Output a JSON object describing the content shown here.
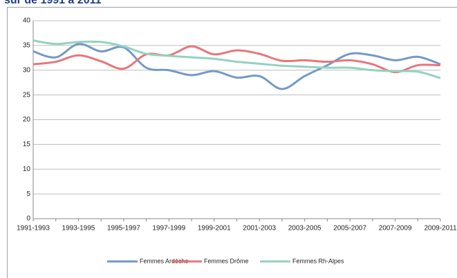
{
  "chart_data": {
    "type": "line",
    "title": "sur de 1991 à 2011",
    "categories": [
      "1991-1993",
      null,
      "1993-1995",
      null,
      "1995-1997",
      null,
      "1997-1999",
      null,
      "1999-2001",
      null,
      "2001-2003",
      null,
      "2003-2005",
      null,
      "2005-2007",
      null,
      "2007-2009",
      null,
      "2009-2011"
    ],
    "series": [
      {
        "name": "Femmes Ardèche",
        "color": "#7399c6",
        "values": [
          33.8,
          32.6,
          35.3,
          33.8,
          34.6,
          30.5,
          30.0,
          29.0,
          29.8,
          28.5,
          28.8,
          26.2,
          28.8,
          31.0,
          33.3,
          33.0,
          32.0,
          32.7,
          31.2
        ]
      },
      {
        "name": "Femmes Drôme",
        "color": "#e8757a",
        "values": [
          31.2,
          31.7,
          33.0,
          31.8,
          30.3,
          33.2,
          33.0,
          34.8,
          33.2,
          34.0,
          33.3,
          31.9,
          32.0,
          31.7,
          32.0,
          31.2,
          29.6,
          31.0,
          31.0
        ]
      },
      {
        "name": "Femmes Rh-Alpes",
        "color": "#93d2c0",
        "values": [
          36.0,
          35.3,
          35.7,
          35.7,
          34.8,
          33.3,
          32.9,
          32.6,
          32.3,
          31.7,
          31.3,
          30.9,
          30.7,
          30.5,
          30.5,
          30.0,
          29.8,
          29.7,
          28.4
        ]
      }
    ],
    "ylim": [
      0,
      40
    ],
    "yticks": [
      0,
      5,
      10,
      15,
      20,
      25,
      30,
      35,
      40
    ],
    "grid": true,
    "legend": "bottom"
  }
}
